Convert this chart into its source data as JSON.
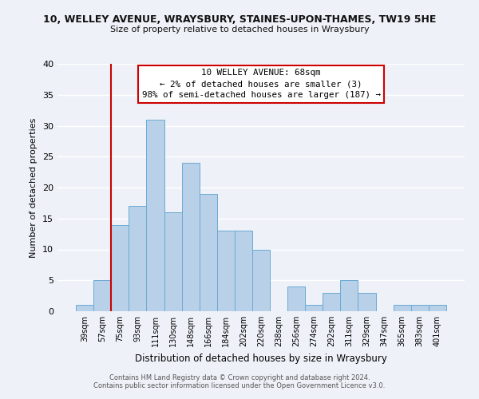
{
  "title1": "10, WELLEY AVENUE, WRAYSBURY, STAINES-UPON-THAMES, TW19 5HE",
  "title2": "Size of property relative to detached houses in Wraysbury",
  "xlabel": "Distribution of detached houses by size in Wraysbury",
  "ylabel": "Number of detached properties",
  "bar_labels": [
    "39sqm",
    "57sqm",
    "75sqm",
    "93sqm",
    "111sqm",
    "130sqm",
    "148sqm",
    "166sqm",
    "184sqm",
    "202sqm",
    "220sqm",
    "238sqm",
    "256sqm",
    "274sqm",
    "292sqm",
    "311sqm",
    "329sqm",
    "347sqm",
    "365sqm",
    "383sqm",
    "401sqm"
  ],
  "bar_values": [
    1,
    5,
    14,
    17,
    31,
    16,
    24,
    19,
    13,
    13,
    10,
    0,
    4,
    1,
    3,
    5,
    3,
    0,
    1,
    1,
    1
  ],
  "bar_color": "#b8d0e8",
  "bar_edge_color": "#6aaad4",
  "vline_color": "#cc0000",
  "annotation_line1": "10 WELLEY AVENUE: 68sqm",
  "annotation_line2": "← 2% of detached houses are smaller (3)",
  "annotation_line3": "98% of semi-detached houses are larger (187) →",
  "annotation_box_color": "#ffffff",
  "annotation_box_edge": "#cc0000",
  "ylim": [
    0,
    40
  ],
  "yticks": [
    0,
    5,
    10,
    15,
    20,
    25,
    30,
    35,
    40
  ],
  "footer1": "Contains HM Land Registry data © Crown copyright and database right 2024.",
  "footer2": "Contains public sector information licensed under the Open Government Licence v3.0.",
  "bg_color": "#eef2f8",
  "plot_bg_color": "#eef2f8",
  "grid_color": "#ffffff"
}
